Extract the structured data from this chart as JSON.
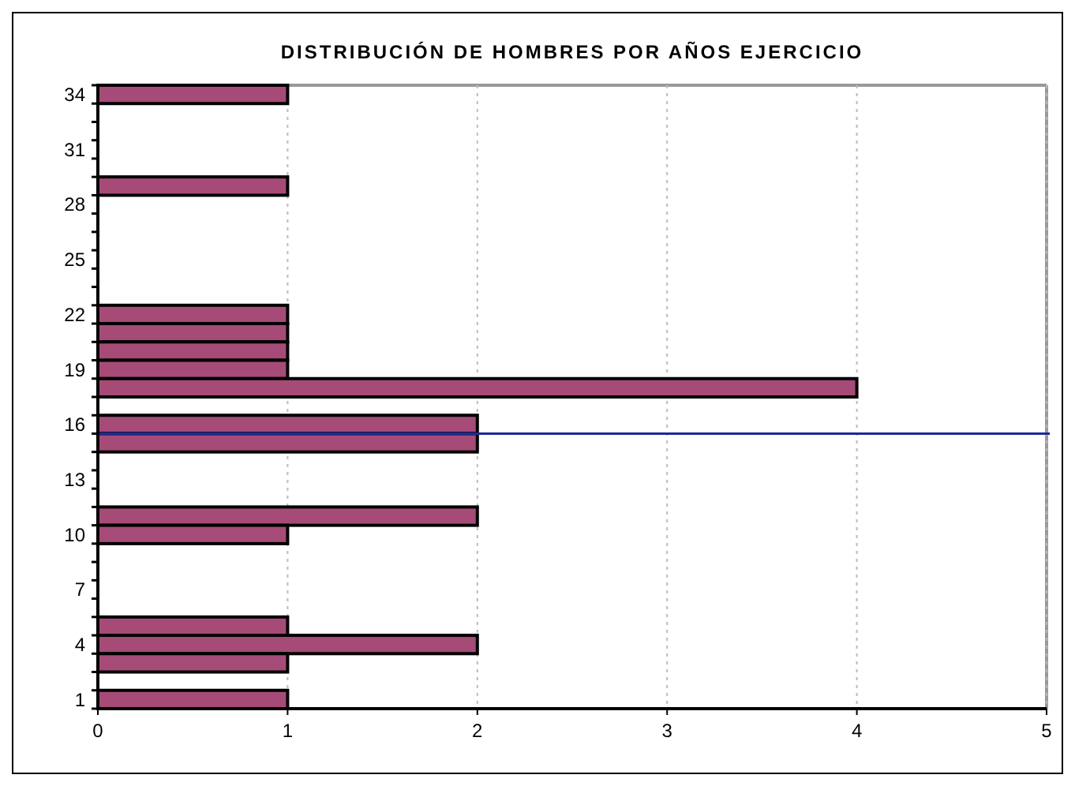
{
  "chart_data": {
    "type": "bar",
    "orientation": "horizontal",
    "title": "DISTRIBUCIÓN DE HOMBRES POR AÑOS EJERCICIO",
    "categories": [
      "34",
      null,
      null,
      "31",
      null,
      null,
      "28",
      null,
      null,
      "25",
      null,
      null,
      "22",
      null,
      null,
      "19",
      null,
      null,
      "16",
      null,
      null,
      "13",
      null,
      null,
      "10",
      null,
      null,
      "7",
      null,
      null,
      "4",
      null,
      null,
      "1"
    ],
    "values": [
      1,
      0,
      0,
      0,
      0,
      1,
      0,
      0,
      0,
      0,
      0,
      0,
      1,
      1,
      1,
      1,
      4,
      0,
      2,
      2,
      0,
      0,
      0,
      2,
      1,
      0,
      0,
      0,
      0,
      1,
      2,
      1,
      0,
      1
    ],
    "color": "#a64b77",
    "xlim": [
      0,
      5
    ],
    "xticks": [
      0,
      1,
      2,
      3,
      4,
      5
    ],
    "grid": "x",
    "ref_lines": [
      {
        "axis": "y",
        "value": "16",
        "color": "#1a2a9a"
      }
    ]
  }
}
